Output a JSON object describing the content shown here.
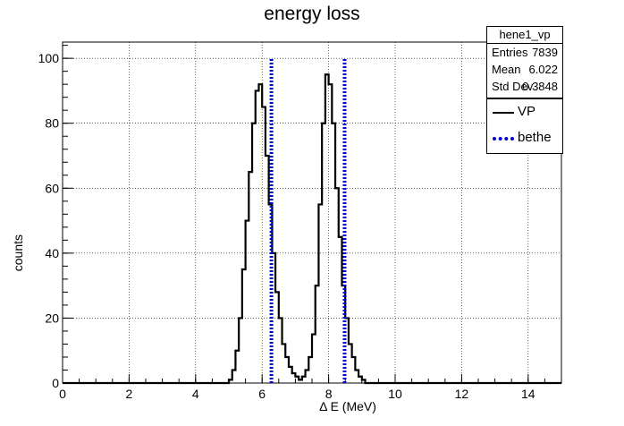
{
  "chart_data": {
    "type": "line",
    "title": "energy loss",
    "xlabel": "Δ E (MeV)",
    "ylabel": "counts",
    "xlim": [
      0,
      15
    ],
    "ylim": [
      0,
      105
    ],
    "xticks": [
      0,
      2,
      4,
      6,
      8,
      10,
      12,
      14
    ],
    "yticks": [
      0,
      20,
      40,
      60,
      80,
      100
    ],
    "grid": true,
    "legend_position": "top-right",
    "series": [
      {
        "name": "VP",
        "color": "#000000",
        "style": "histogram",
        "x": [
          0.0,
          4.9,
          5.0,
          5.1,
          5.2,
          5.3,
          5.4,
          5.5,
          5.6,
          5.7,
          5.8,
          5.9,
          6.0,
          6.1,
          6.2,
          6.3,
          6.4,
          6.5,
          6.6,
          6.7,
          6.8,
          6.9,
          7.0,
          7.1,
          7.2,
          7.3,
          7.4,
          7.5,
          7.6,
          7.7,
          7.8,
          7.9,
          8.0,
          8.1,
          8.2,
          8.3,
          8.4,
          8.5,
          8.6,
          8.7,
          8.8,
          8.9,
          9.0,
          9.1,
          9.2,
          9.3,
          9.4,
          9.5,
          9.6,
          9.7,
          9.8,
          9.9,
          10.0,
          10.1,
          15.0
        ],
        "y": [
          0,
          0,
          1,
          4,
          10,
          20,
          35,
          50,
          65,
          80,
          90,
          92,
          85,
          70,
          55,
          40,
          28,
          20,
          12,
          8,
          5,
          3,
          2,
          1,
          2,
          4,
          8,
          15,
          30,
          55,
          80,
          95,
          92,
          80,
          60,
          45,
          30,
          20,
          12,
          8,
          4,
          2,
          1,
          0,
          0,
          0,
          0,
          0,
          0,
          0,
          0,
          0,
          0,
          0,
          0
        ]
      },
      {
        "name": "bethe",
        "color": "#0000cc",
        "style": "vertical-lines",
        "x": [
          6.28,
          8.48
        ],
        "y": [
          100,
          100
        ]
      }
    ]
  },
  "stats_box": {
    "name": "hene1_vp",
    "rows": [
      {
        "key": "Entries",
        "value": "7839"
      },
      {
        "key": "Mean",
        "value": "6.022"
      },
      {
        "key": "Std Dev",
        "value": "0.3848"
      }
    ]
  },
  "legend": {
    "entries": [
      {
        "label": "VP",
        "color": "#000000",
        "style": "solid"
      },
      {
        "label": "bethe",
        "color": "#0000cc",
        "style": "dotted"
      }
    ]
  }
}
